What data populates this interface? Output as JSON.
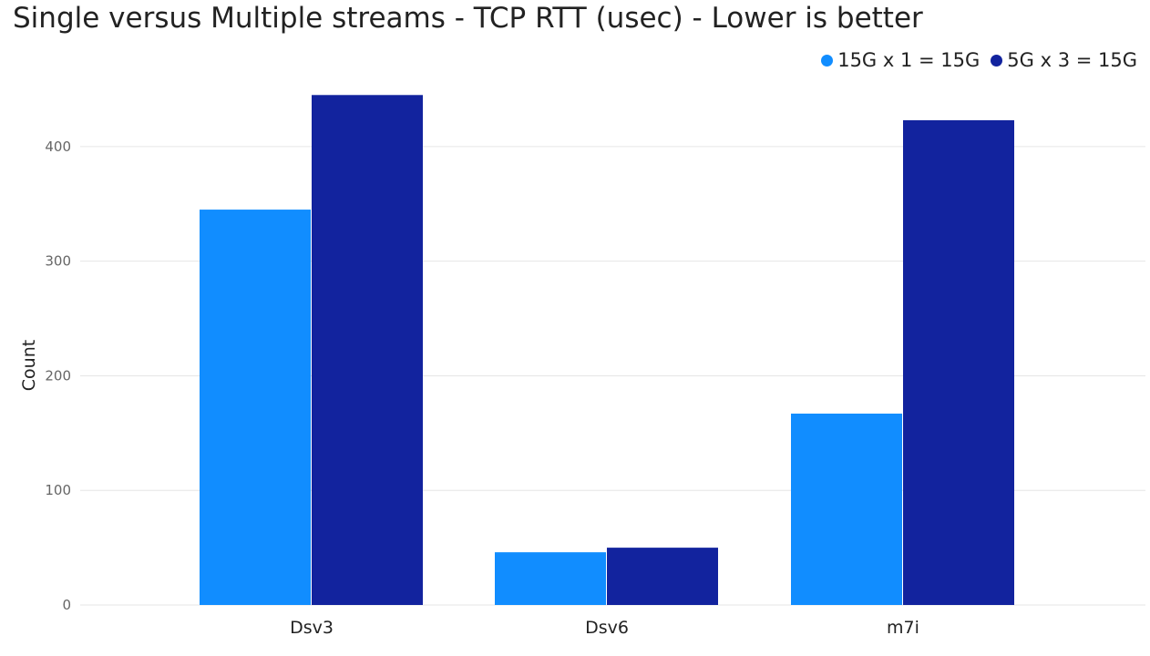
{
  "chart_data": {
    "type": "bar",
    "title": "Single versus Multiple streams - TCP RTT (usec) - Lower is better",
    "xlabel": "",
    "ylabel": "Count",
    "categories": [
      "Dsv3",
      "Dsv6",
      "m7i"
    ],
    "series": [
      {
        "name": "15G x 1 = 15G",
        "color": "#118DFF",
        "values": [
          345,
          46,
          167
        ]
      },
      {
        "name": "5G x 3 = 15G",
        "color": "#12239E",
        "values": [
          445,
          50,
          423
        ]
      }
    ],
    "ylim": [
      0,
      450
    ],
    "yticks": [
      0,
      100,
      200,
      300,
      400
    ],
    "grid": true,
    "legend_position": "top-right"
  }
}
